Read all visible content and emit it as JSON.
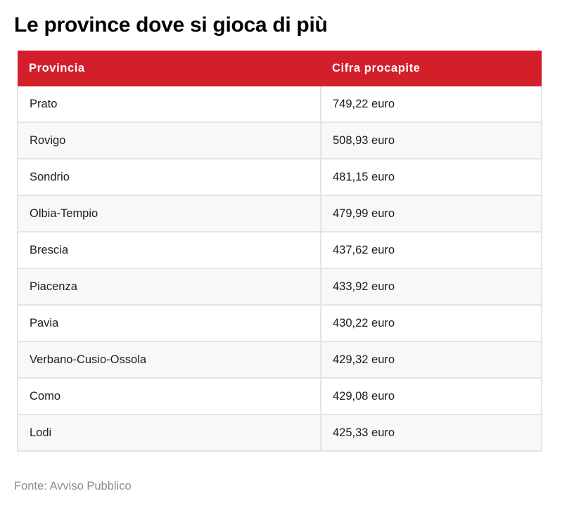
{
  "title": "Le province dove si gioca di più",
  "source": "Fonte: Avviso Pubblico",
  "colors": {
    "header_bg": "#d21f2a",
    "header_text": "#ffffff",
    "row_even_bg": "#f8f8f8",
    "row_odd_bg": "#ffffff",
    "border": "#e4e4e4",
    "source_text": "#8c8c8c"
  },
  "table": {
    "columns": [
      "Provincia",
      "Cifra procapite"
    ],
    "rows": [
      {
        "provincia": "Prato",
        "cifra": "749,22 euro"
      },
      {
        "provincia": "Rovigo",
        "cifra": "508,93 euro"
      },
      {
        "provincia": "Sondrio",
        "cifra": "481,15 euro"
      },
      {
        "provincia": "Olbia-Tempio",
        "cifra": "479,99 euro"
      },
      {
        "provincia": "Brescia",
        "cifra": "437,62 euro"
      },
      {
        "provincia": "Piacenza",
        "cifra": "433,92 euro"
      },
      {
        "provincia": "Pavia",
        "cifra": "430,22 euro"
      },
      {
        "provincia": "Verbano-Cusio-Ossola",
        "cifra": "429,32 euro"
      },
      {
        "provincia": "Como",
        "cifra": "429,08 euro"
      },
      {
        "provincia": "Lodi",
        "cifra": "425,33 euro"
      }
    ]
  },
  "chart_data": {
    "type": "table",
    "title": "Le province dove si gioca di più",
    "columns": [
      "Provincia",
      "Cifra procapite"
    ],
    "categories": [
      "Prato",
      "Rovigo",
      "Sondrio",
      "Olbia-Tempio",
      "Brescia",
      "Piacenza",
      "Pavia",
      "Verbano-Cusio-Ossola",
      "Como",
      "Lodi"
    ],
    "values": [
      749.22,
      508.93,
      481.15,
      479.99,
      437.62,
      433.92,
      430.22,
      429.32,
      429.08,
      425.33
    ],
    "unit": "euro",
    "source": "Fonte: Avviso Pubblico"
  }
}
